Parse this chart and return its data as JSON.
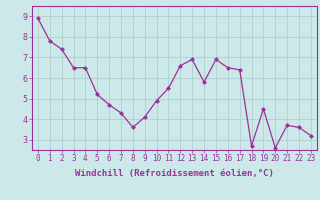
{
  "x": [
    0,
    1,
    2,
    3,
    4,
    5,
    6,
    7,
    8,
    9,
    10,
    11,
    12,
    13,
    14,
    15,
    16,
    17,
    18,
    19,
    20,
    21,
    22,
    23
  ],
  "y": [
    8.9,
    7.8,
    7.4,
    6.5,
    6.5,
    5.2,
    4.7,
    4.3,
    3.6,
    4.1,
    4.9,
    5.5,
    6.6,
    6.9,
    5.8,
    6.9,
    6.5,
    6.4,
    2.7,
    4.5,
    2.6,
    3.7,
    3.6,
    3.2
  ],
  "line_color": "#993399",
  "marker": "D",
  "marker_size": 2.0,
  "bg_color": "#cce8e8",
  "plot_bg": "#cce8e8",
  "grid_color": "#aacccc",
  "xlabel": "Windchill (Refroidissement éolien,°C)",
  "ylabel_ticks": [
    3,
    4,
    5,
    6,
    7,
    8,
    9
  ],
  "xlim": [
    -0.5,
    23.5
  ],
  "ylim": [
    2.5,
    9.5
  ],
  "xlabel_color": "#993399",
  "tick_color": "#993399",
  "label_fontsize": 6.5,
  "tick_fontsize": 5.5
}
